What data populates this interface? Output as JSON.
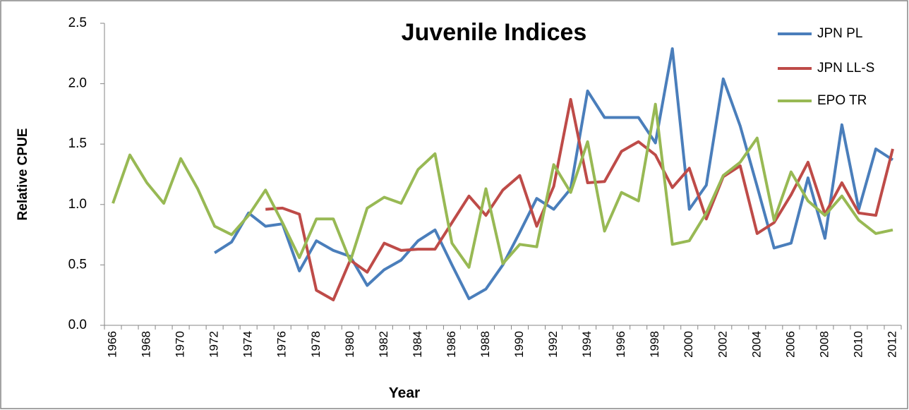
{
  "chart_data": {
    "type": "line",
    "title": "Juvenile Indices",
    "x_label": "Year",
    "y_label": "Relative CPUE",
    "categories": [
      "1966",
      null,
      "1968",
      null,
      "1970",
      null,
      "1972",
      null,
      "1974",
      null,
      "1976",
      null,
      "1978",
      null,
      "1980",
      null,
      "1982",
      null,
      "1984",
      null,
      "1986",
      null,
      "1988",
      null,
      "1990",
      null,
      "1992",
      null,
      "1994",
      null,
      "1996",
      null,
      "1998",
      null,
      "2000",
      null,
      "2002",
      null,
      "2004",
      null,
      "2006",
      null,
      "2008",
      null,
      "2010",
      null,
      "2012"
    ],
    "series": [
      {
        "name": "JPN PL",
        "color": "#4a7ebb",
        "values": [
          null,
          null,
          null,
          null,
          null,
          null,
          0.6,
          0.69,
          0.93,
          0.82,
          0.84,
          0.45,
          0.7,
          0.62,
          0.57,
          0.33,
          0.46,
          0.54,
          0.7,
          0.79,
          0.5,
          0.22,
          0.3,
          0.5,
          0.77,
          1.05,
          0.96,
          1.13,
          1.94,
          1.72,
          1.72,
          1.72,
          1.51,
          2.29,
          0.96,
          1.16,
          2.04,
          1.65,
          1.15,
          0.64,
          0.68,
          1.22,
          0.72,
          1.66,
          0.96,
          1.46,
          1.37
        ]
      },
      {
        "name": "JPN LL-S",
        "color": "#be4b48",
        "values": [
          null,
          null,
          null,
          null,
          null,
          null,
          null,
          null,
          null,
          0.96,
          0.97,
          0.92,
          0.29,
          0.21,
          0.54,
          0.44,
          0.68,
          0.62,
          0.63,
          0.63,
          0.85,
          1.07,
          0.91,
          1.12,
          1.24,
          0.82,
          1.15,
          1.87,
          1.18,
          1.19,
          1.44,
          1.52,
          1.41,
          1.14,
          1.3,
          0.88,
          1.23,
          1.32,
          0.76,
          0.85,
          1.08,
          1.35,
          0.92,
          1.18,
          0.93,
          0.91,
          1.46
        ]
      },
      {
        "name": "EPO TR",
        "color": "#98b954",
        "values": [
          1.01,
          1.41,
          1.18,
          1.01,
          1.38,
          1.13,
          0.82,
          0.75,
          0.91,
          1.12,
          0.85,
          0.56,
          0.88,
          0.88,
          0.53,
          0.97,
          1.06,
          1.01,
          1.29,
          1.42,
          0.68,
          0.48,
          1.13,
          0.51,
          0.67,
          0.65,
          1.33,
          1.1,
          1.52,
          0.78,
          1.1,
          1.03,
          1.83,
          0.67,
          0.7,
          0.93,
          1.24,
          1.35,
          1.55,
          0.87,
          1.27,
          1.03,
          0.91,
          1.07,
          0.87,
          0.76,
          0.79
        ]
      }
    ],
    "ylim": [
      0,
      2.5
    ],
    "yticks": [
      {
        "value": 0,
        "label": "0.0"
      },
      0.5,
      {
        "value": 1,
        "label": "1.0"
      },
      1.5,
      {
        "value": 2,
        "label": "2.0"
      },
      2.5
    ],
    "grid": false,
    "legend": "top-right"
  }
}
